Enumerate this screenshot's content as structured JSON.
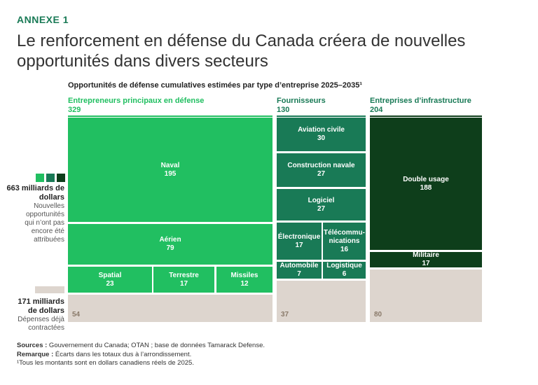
{
  "kicker": "ANNEXE 1",
  "title": "Le renforcement en défense du Canada créera de nouvelles opportunités dans divers secteurs",
  "colors": {
    "prime": "#21BF61",
    "suppliers": "#197A56",
    "infra": "#0E3E1B",
    "contracted": "#DDD5CE"
  },
  "chart_data": {
    "type": "treemap",
    "title": "Opportunités de défense cumulatives estimées par type d’entreprise 2025–2035¹",
    "groups": [
      {
        "name": "Entrepreneurs principaux en défense",
        "total": "329",
        "contracted": "54",
        "items": [
          {
            "label": "Naval",
            "value": 195
          },
          {
            "label": "Aérien",
            "value": 79
          },
          {
            "label": "Spatial",
            "value": 23
          },
          {
            "label": "Terrestre",
            "value": 17
          },
          {
            "label": "Missiles",
            "value": 12
          }
        ]
      },
      {
        "name": "Fournisseurs",
        "total": "130",
        "contracted": "37",
        "items": [
          {
            "label": "Aviation civile",
            "value": 30
          },
          {
            "label": "Construction navale",
            "value": 27
          },
          {
            "label": "Logiciel",
            "value": 27
          },
          {
            "label": "Électronique",
            "value": 17
          },
          {
            "label": "Télécommu-nications",
            "value": 16
          },
          {
            "label": "Automobile",
            "value": 7
          },
          {
            "label": "Logistique",
            "value": 6
          }
        ]
      },
      {
        "name": "Entreprises d’infrastructure",
        "total": "204",
        "contracted": "80",
        "items": [
          {
            "label": "Double usage",
            "value": 188
          },
          {
            "label": "Militaire",
            "value": 17
          }
        ]
      }
    ]
  },
  "legend": {
    "new": {
      "amount": "663 milliards de dollars",
      "desc": "Nouvelles opportunités qui n’ont pas encore été attribuées"
    },
    "contracted": {
      "amount": "171 milliards de dollars",
      "desc": "Dépenses déjà contractées"
    }
  },
  "footer": {
    "sources_label": "Sources :",
    "sources": " Gouvernement du Canada; OTAN ; base de données Tamarack Defense.",
    "note_label": "Remarque :",
    "note": " Écarts dans les totaux dus à l’arrondissement.",
    "footnote": "¹Tous les montants sont en dollars canadiens réels de 2025."
  }
}
